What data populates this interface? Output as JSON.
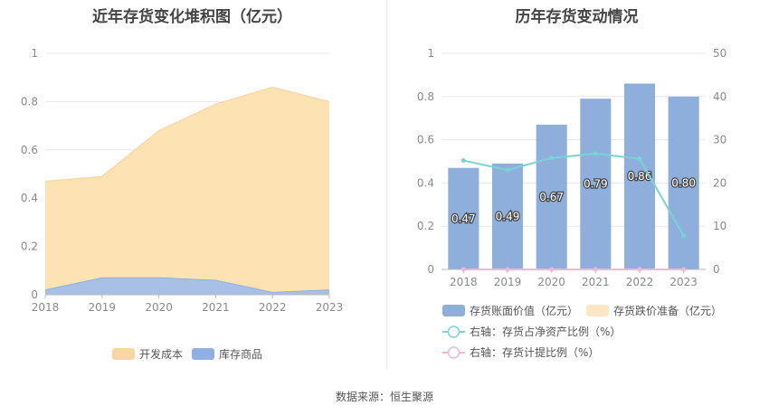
{
  "left_title": "近年存货变化堆积图（亿元）",
  "right_title": "历年存货变动情况",
  "source": "数据来源：恒生聚源",
  "chart_data": [
    {
      "type": "area",
      "stacked": true,
      "categories": [
        "2018",
        "2019",
        "2020",
        "2021",
        "2022",
        "2023"
      ],
      "ylim": [
        0,
        1
      ],
      "yticks": [
        "0",
        "0.2",
        "0.4",
        "0.6",
        "0.8",
        "1"
      ],
      "series": [
        {
          "name": "库存商品",
          "values": [
            0.02,
            0.07,
            0.07,
            0.06,
            0.01,
            0.02
          ],
          "color": "#a9c0e6"
        },
        {
          "name": "开发成本",
          "values": [
            0.45,
            0.42,
            0.61,
            0.73,
            0.85,
            0.78
          ],
          "color": "#fde2b4"
        }
      ],
      "legend": [
        {
          "name": "开发成本",
          "color": "#fad7a0"
        },
        {
          "name": "库存商品",
          "color": "#8fb0e0"
        }
      ],
      "legend_position": "bottom"
    },
    {
      "type": "bar",
      "categories": [
        "2018",
        "2019",
        "2020",
        "2021",
        "2022",
        "2023"
      ],
      "ylim_left": [
        0,
        1
      ],
      "ylim_right": [
        0,
        50
      ],
      "yticks_left": [
        "0",
        "0.2",
        "0.4",
        "0.6",
        "0.8",
        "1"
      ],
      "yticks_right": [
        "0",
        "10",
        "20",
        "30",
        "40",
        "50"
      ],
      "bars": {
        "name": "存货账面价值（亿元）",
        "values": [
          0.47,
          0.49,
          0.67,
          0.79,
          0.86,
          0.8
        ],
        "labels": [
          "0.47",
          "0.49",
          "0.67",
          "0.79",
          "0.86",
          "0.80"
        ],
        "color": "#8eaedc"
      },
      "bars_reserve": {
        "name": "存货跌价准备（亿元）",
        "values": [
          0,
          0,
          0,
          0,
          0,
          0
        ],
        "color": "#fde7c3"
      },
      "lines": [
        {
          "name": "右轴：存货占净资产比例（%）",
          "axis": "right",
          "values": [
            25.2,
            23.0,
            25.8,
            26.8,
            25.6,
            7.8
          ],
          "color": "#7ad3d3"
        },
        {
          "name": "右轴：存货计提比例（%）",
          "axis": "right",
          "values": [
            0,
            0,
            0,
            0,
            0,
            0
          ],
          "color": "#f0b6d6"
        }
      ],
      "legend_position": "bottom"
    }
  ]
}
